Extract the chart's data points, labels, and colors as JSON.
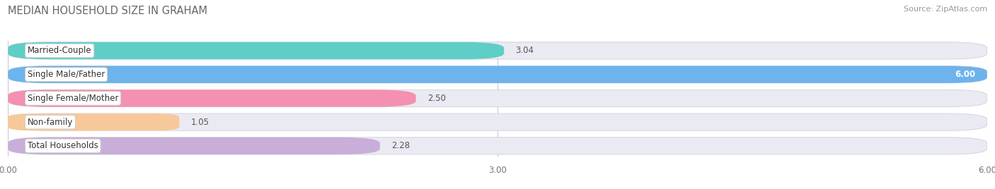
{
  "title": "MEDIAN HOUSEHOLD SIZE IN GRAHAM",
  "source": "Source: ZipAtlas.com",
  "categories": [
    "Married-Couple",
    "Single Male/Father",
    "Single Female/Mother",
    "Non-family",
    "Total Households"
  ],
  "values": [
    3.04,
    6.0,
    2.5,
    1.05,
    2.28
  ],
  "colors": [
    "#5ecec6",
    "#6db3ec",
    "#f490b0",
    "#f7c99a",
    "#c8aed8"
  ],
  "bar_bg_color": "#eaeaf2",
  "xlim": [
    0,
    6
  ],
  "xticks": [
    0.0,
    3.0,
    6.0
  ],
  "xtick_labels": [
    "0.00",
    "3.00",
    "6.00"
  ],
  "title_fontsize": 10.5,
  "source_fontsize": 8,
  "label_fontsize": 8.5,
  "value_fontsize": 8.5,
  "bar_height": 0.72,
  "bar_spacing": 1.0,
  "fig_bg_color": "#ffffff"
}
